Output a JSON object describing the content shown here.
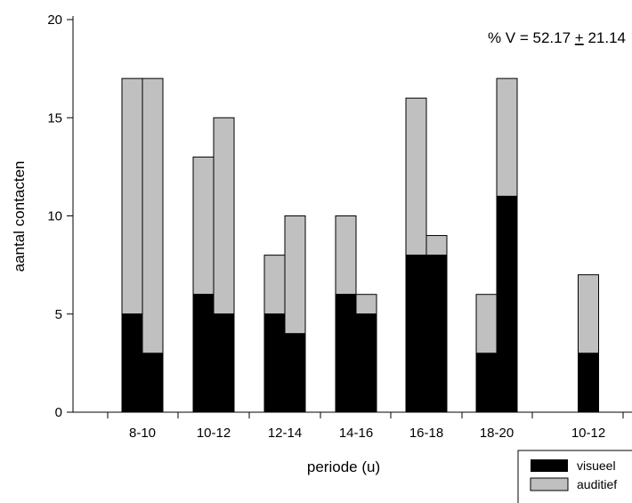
{
  "chart_data": {
    "type": "bar",
    "stacked": true,
    "xlabel": "periode (u)",
    "ylabel": "aantal contacten",
    "ylim": [
      0,
      20
    ],
    "yticks": [
      0,
      5,
      10,
      15,
      20
    ],
    "annotation": {
      "prefix": "% V = 52.17 ",
      "pm": "+",
      "suffix": " 21.14"
    },
    "groups": [
      {
        "label": "8-10",
        "bars": [
          {
            "visueel": 5,
            "auditief": 12
          },
          {
            "visueel": 3,
            "auditief": 14
          }
        ]
      },
      {
        "label": "10-12",
        "bars": [
          {
            "visueel": 6,
            "auditief": 7
          },
          {
            "visueel": 5,
            "auditief": 10
          }
        ]
      },
      {
        "label": "12-14",
        "bars": [
          {
            "visueel": 5,
            "auditief": 3
          },
          {
            "visueel": 4,
            "auditief": 6
          }
        ]
      },
      {
        "label": "14-16",
        "bars": [
          {
            "visueel": 6,
            "auditief": 4
          },
          {
            "visueel": 5,
            "auditief": 1
          }
        ]
      },
      {
        "label": "16-18",
        "bars": [
          {
            "visueel": 8,
            "auditief": 8
          },
          {
            "visueel": 8,
            "auditief": 1
          }
        ]
      },
      {
        "label": "18-20",
        "bars": [
          {
            "visueel": 3,
            "auditief": 3
          },
          {
            "visueel": 11,
            "auditief": 6
          }
        ]
      },
      {
        "label": "10-12",
        "bars": [
          {
            "visueel": 3,
            "auditief": 4
          }
        ]
      }
    ],
    "series": [
      {
        "name": "visueel",
        "color": "#000000"
      },
      {
        "name": "auditief",
        "color": "#c0c0c0"
      }
    ],
    "legend_position": "bottom-right"
  }
}
